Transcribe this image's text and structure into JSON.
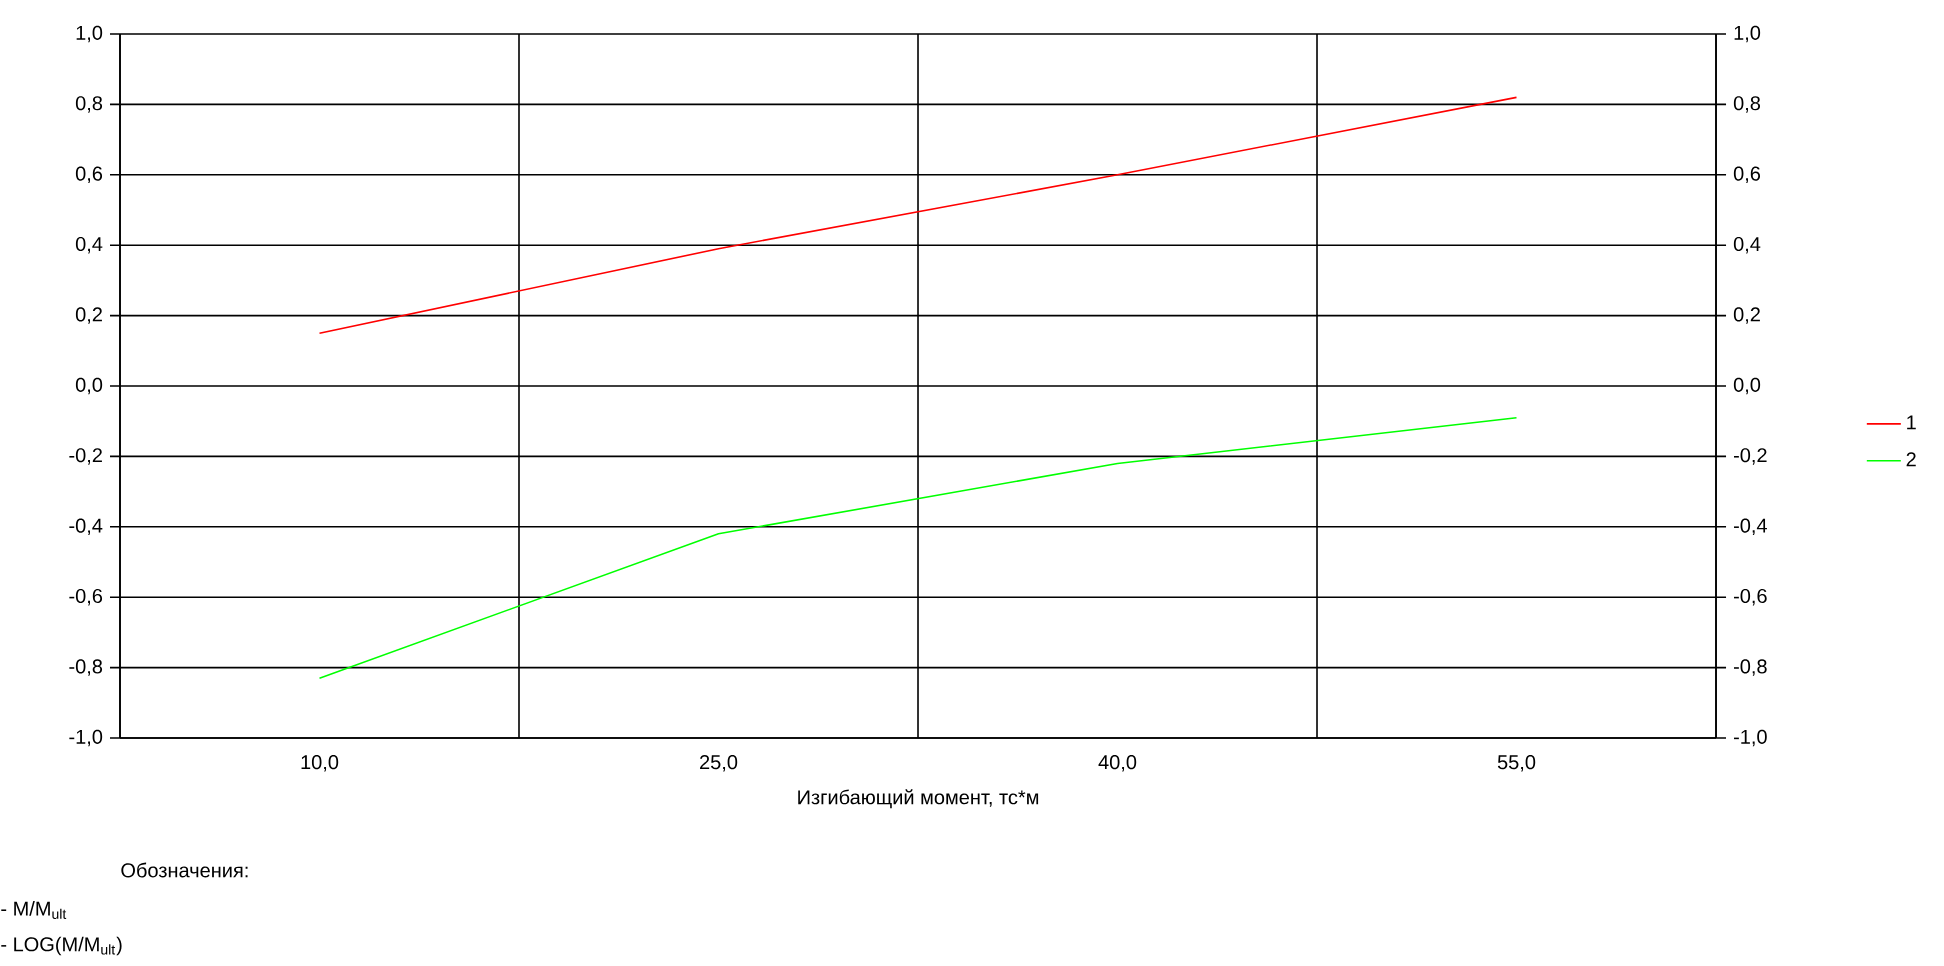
{
  "chart_data": {
    "type": "line",
    "xlabel": "Изгибающий момент, тс*м",
    "categories": [
      "10,0",
      "25,0",
      "40,0",
      "55,0"
    ],
    "series": [
      {
        "name": "1",
        "color": "#ff0000",
        "values": [
          0.15,
          0.39,
          0.6,
          0.82
        ]
      },
      {
        "name": "2",
        "color": "#00ff00",
        "values": [
          -0.83,
          -0.42,
          -0.22,
          -0.09
        ]
      }
    ],
    "ylim": [
      -1,
      1
    ],
    "yticks": [
      {
        "value": -1,
        "label": "-1,0"
      },
      {
        "value": -0.8,
        "label": "-0,8"
      },
      {
        "value": -0.6,
        "label": "-0,6"
      },
      {
        "value": -0.4,
        "label": "-0,4"
      },
      {
        "value": -0.2,
        "label": "-0,2"
      },
      {
        "value": 0,
        "label": "0,0"
      },
      {
        "value": 0.2,
        "label": "0,2"
      },
      {
        "value": 0.4,
        "label": "0,4"
      },
      {
        "value": 0.6,
        "label": "0,6"
      },
      {
        "value": 0.8,
        "label": "0,8"
      },
      {
        "value": 1,
        "label": "1,0"
      }
    ],
    "y2lim": [
      -1,
      1
    ],
    "y2ticks": [
      {
        "value": -1,
        "label": "-1,0"
      },
      {
        "value": -0.8,
        "label": "-0,8"
      },
      {
        "value": -0.6,
        "label": "-0,6"
      },
      {
        "value": -0.4,
        "label": "-0,4"
      },
      {
        "value": -0.2,
        "label": "-0,2"
      },
      {
        "value": 0,
        "label": "0,0"
      },
      {
        "value": 0.2,
        "label": "0,2"
      },
      {
        "value": 0.4,
        "label": "0,4"
      },
      {
        "value": 0.6,
        "label": "0,6"
      },
      {
        "value": 0.8,
        "label": "0,8"
      },
      {
        "value": 1,
        "label": "1,0"
      }
    ],
    "grid": true,
    "legend": "right",
    "annotations": [
      "Обозначения:",
      "- M/M$_{ult}$",
      "- LOG(M/M$_{ult}$)"
    ]
  }
}
